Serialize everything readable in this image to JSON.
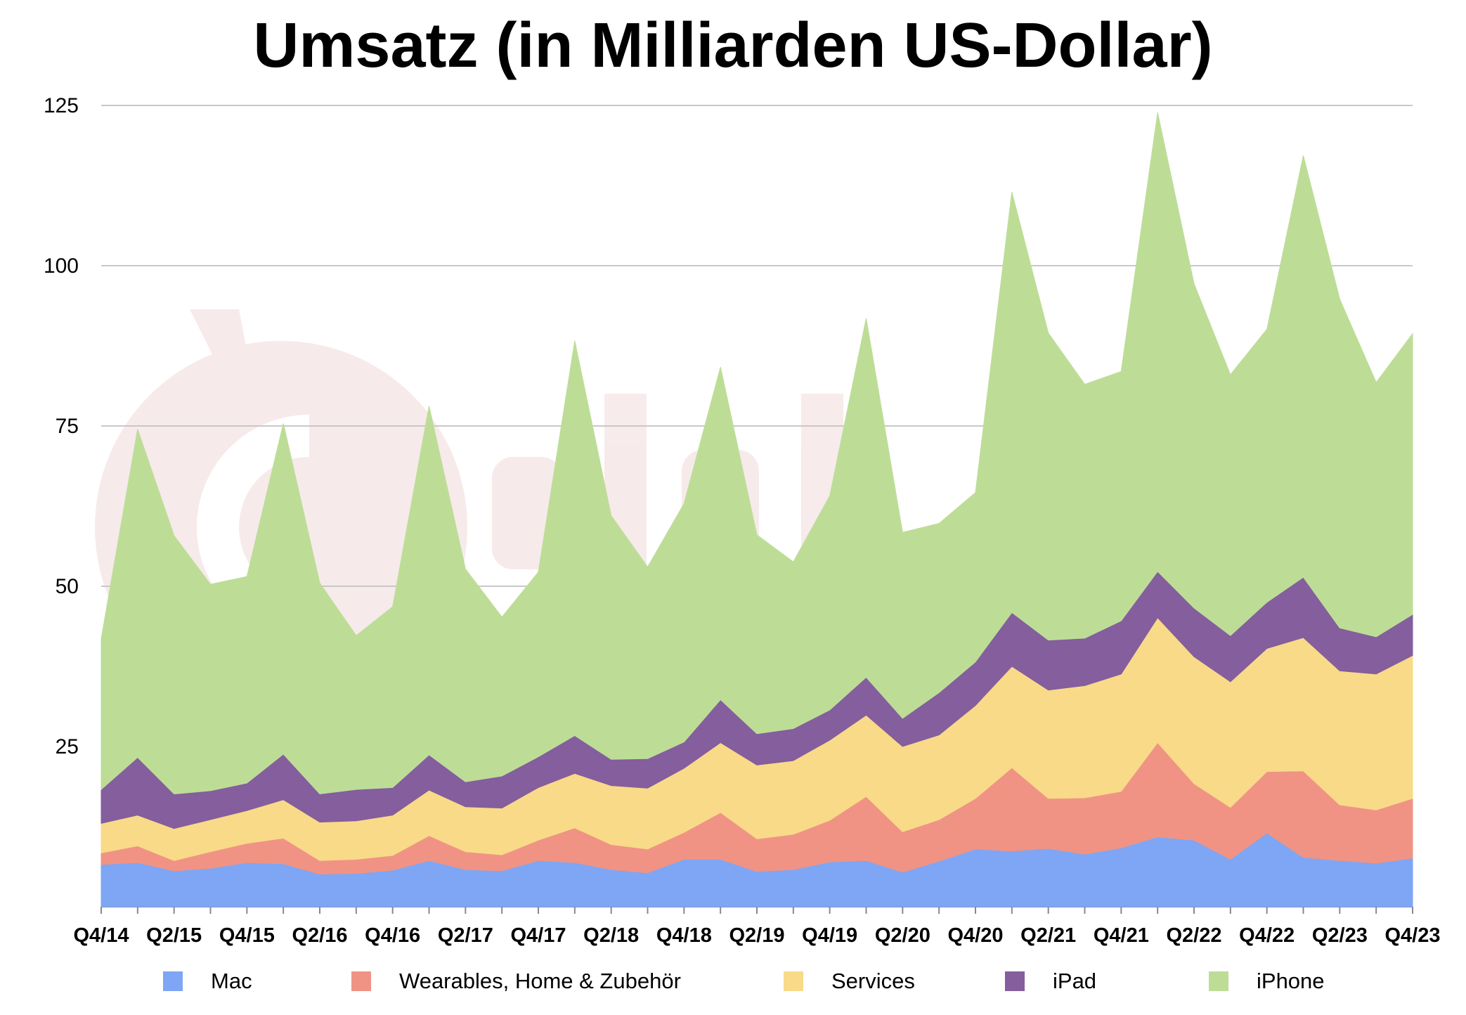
{
  "chart_data": {
    "type": "area",
    "stacked": true,
    "title": "Umsatz (in Milliarden US-Dollar)",
    "xlabel": "",
    "ylabel": "",
    "ylim": [
      0,
      125
    ],
    "y_ticks": [
      25,
      50,
      75,
      100,
      125
    ],
    "grid": true,
    "legend_position": "bottom",
    "x": [
      "Q4/14",
      "Q1/15",
      "Q2/15",
      "Q3/15",
      "Q4/15",
      "Q1/16",
      "Q2/16",
      "Q3/16",
      "Q4/16",
      "Q1/17",
      "Q2/17",
      "Q3/17",
      "Q4/17",
      "Q1/18",
      "Q2/18",
      "Q3/18",
      "Q4/18",
      "Q1/19",
      "Q2/19",
      "Q3/19",
      "Q4/19",
      "Q1/20",
      "Q2/20",
      "Q3/20",
      "Q4/20",
      "Q1/21",
      "Q2/21",
      "Q3/21",
      "Q4/21",
      "Q1/22",
      "Q2/22",
      "Q3/22",
      "Q4/22",
      "Q1/23",
      "Q2/23",
      "Q3/23",
      "Q4/23"
    ],
    "x_tick_labels": [
      "Q4/14",
      "Q2/15",
      "Q4/15",
      "Q2/16",
      "Q4/16",
      "Q2/17",
      "Q4/17",
      "Q2/18",
      "Q4/18",
      "Q2/19",
      "Q4/19",
      "Q2/20",
      "Q4/20",
      "Q2/21",
      "Q4/21",
      "Q2/22",
      "Q4/22",
      "Q2/23",
      "Q4/23"
    ],
    "series": [
      {
        "name": "Mac",
        "color": "#7ea6f4",
        "values": [
          6.6,
          6.9,
          5.6,
          6.0,
          6.9,
          6.7,
          5.1,
          5.2,
          5.7,
          7.2,
          5.8,
          5.6,
          7.2,
          6.9,
          5.8,
          5.3,
          7.4,
          7.4,
          5.5,
          5.8,
          7.0,
          7.2,
          5.4,
          7.1,
          9.0,
          8.7,
          9.1,
          8.2,
          9.2,
          10.9,
          10.4,
          7.4,
          11.5,
          7.7,
          7.2,
          6.8,
          7.6
        ]
      },
      {
        "name": "Wearables, Home & Zubehör",
        "color": "#f09384",
        "values": [
          1.8,
          2.6,
          1.6,
          2.6,
          3.0,
          4.0,
          2.1,
          2.2,
          2.3,
          3.9,
          2.8,
          2.5,
          3.2,
          5.4,
          3.9,
          3.7,
          4.2,
          7.3,
          5.1,
          5.5,
          6.5,
          10.0,
          6.3,
          6.5,
          7.9,
          13.0,
          7.8,
          8.8,
          8.8,
          14.7,
          8.8,
          8.1,
          9.6,
          13.5,
          8.7,
          8.3,
          9.3
        ]
      },
      {
        "name": "Services",
        "color": "#f8da88",
        "values": [
          4.6,
          4.8,
          5.0,
          5.0,
          5.1,
          6.0,
          6.0,
          6.0,
          6.3,
          7.1,
          7.0,
          7.3,
          8.2,
          8.5,
          9.2,
          9.5,
          10.0,
          10.9,
          11.5,
          11.5,
          12.5,
          12.7,
          13.3,
          13.2,
          14.5,
          15.8,
          16.9,
          17.5,
          18.3,
          19.5,
          19.8,
          19.6,
          19.2,
          20.8,
          20.9,
          21.2,
          22.3
        ]
      },
      {
        "name": "iPad",
        "color": "#845e9d",
        "values": [
          5.3,
          9.0,
          5.4,
          4.5,
          4.3,
          7.1,
          4.4,
          4.9,
          4.3,
          5.5,
          3.9,
          5.0,
          4.8,
          5.9,
          4.1,
          4.6,
          4.1,
          6.7,
          4.9,
          5.0,
          4.7,
          5.9,
          4.4,
          6.6,
          6.8,
          8.4,
          7.8,
          7.4,
          8.3,
          7.2,
          7.6,
          7.2,
          7.2,
          9.4,
          6.7,
          5.8,
          6.4
        ]
      },
      {
        "name": "iPhone",
        "color": "#bddd97",
        "values": [
          23.5,
          51.2,
          40.3,
          32.2,
          32.2,
          51.6,
          32.9,
          24.0,
          28.2,
          54.4,
          33.2,
          24.8,
          28.8,
          61.6,
          38.0,
          29.9,
          37.2,
          51.9,
          31.0,
          26.0,
          33.4,
          56.0,
          29.0,
          26.4,
          26.4,
          65.6,
          47.9,
          39.6,
          38.9,
          71.6,
          50.6,
          40.7,
          42.6,
          65.8,
          51.3,
          39.7,
          43.8
        ]
      }
    ]
  }
}
